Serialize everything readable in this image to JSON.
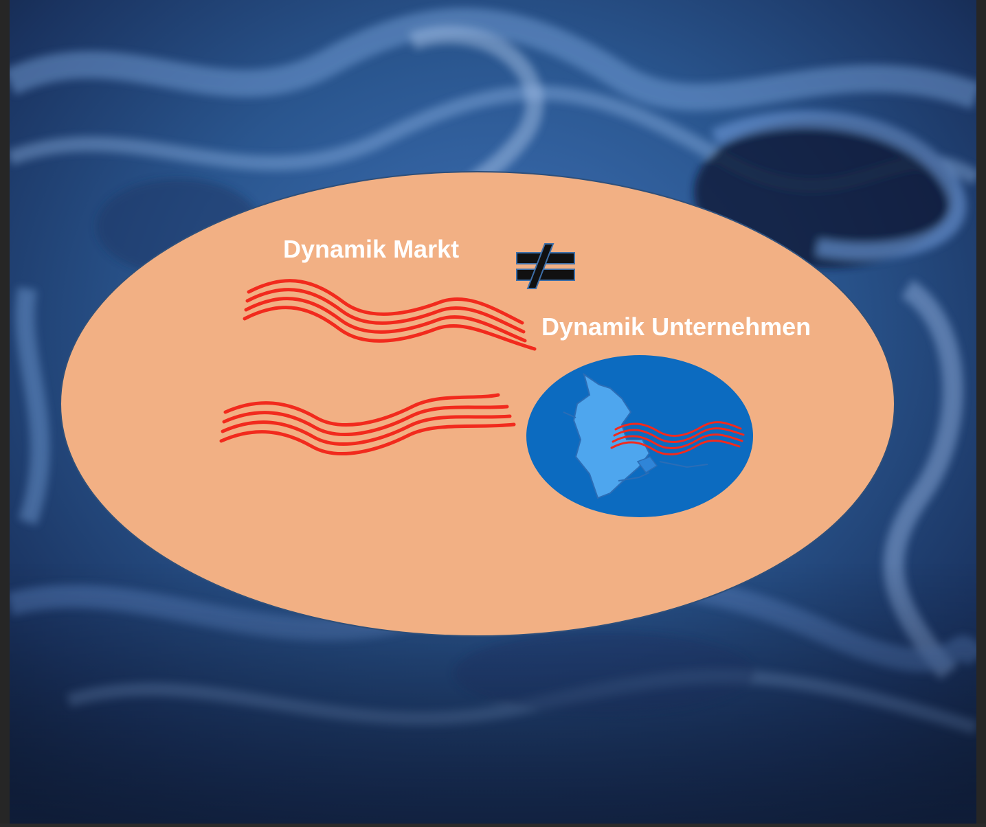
{
  "diagram": {
    "labels": {
      "market": "Dynamik Markt",
      "company": "Dynamik Unternehmen"
    },
    "symbols": {
      "relation": "not-equal-icon"
    },
    "colors": {
      "background_dark": "#14233f",
      "background_mid": "#2c5a9a",
      "background_light": "#8fb3e6",
      "ellipse_fill": "#f2b084",
      "ellipse_stroke": "#2e4f7a",
      "wave_stroke": "#f22a1d",
      "inner_circle_fill": "#0c6bc0",
      "inner_hole_fill": "#4ea6ee",
      "label_color": "#ffffff"
    }
  }
}
